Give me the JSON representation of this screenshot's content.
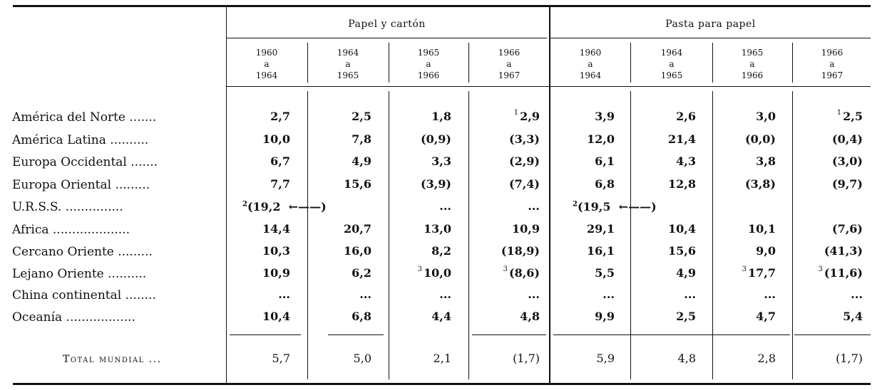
{
  "group_headers": [
    "Papel y cartón",
    "Pasta para papel"
  ],
  "periods": [
    [
      "1960",
      "a",
      "1964"
    ],
    [
      "1964",
      "a",
      "1965"
    ],
    [
      "1965",
      "a",
      "1966"
    ],
    [
      "1966",
      "a",
      "1967"
    ],
    [
      "1960",
      "a",
      "1964"
    ],
    [
      "1964",
      "a",
      "1965"
    ],
    [
      "1965",
      "a",
      "1966"
    ],
    [
      "1966",
      "a",
      "1967"
    ]
  ],
  "rows": [
    {
      "label": "América del Norte .......",
      "cells": [
        {
          "v": "2,7"
        },
        {
          "v": "2,5"
        },
        {
          "v": "1,8"
        },
        {
          "n": "1",
          "v": "2,9"
        },
        {
          "v": "3,9"
        },
        {
          "v": "2,6"
        },
        {
          "v": "3,0"
        },
        {
          "n": "1",
          "v": "2,5"
        }
      ]
    },
    {
      "label": "América Latina ..........",
      "cells": [
        {
          "v": "10,0"
        },
        {
          "v": "7,8"
        },
        {
          "v": "(0,9)"
        },
        {
          "v": "(3,3)"
        },
        {
          "v": "12,0"
        },
        {
          "v": "21,4"
        },
        {
          "v": "(0,0)"
        },
        {
          "v": "(0,4)"
        }
      ]
    },
    {
      "label": "Europa Occidental .......",
      "cells": [
        {
          "v": "6,7"
        },
        {
          "v": "4,9"
        },
        {
          "v": "3,3"
        },
        {
          "v": "(2,9)"
        },
        {
          "v": "6,1"
        },
        {
          "v": "4,3"
        },
        {
          "v": "3,8"
        },
        {
          "v": "(3,0)"
        }
      ]
    },
    {
      "label": "Europa Oriental .........",
      "cells": [
        {
          "v": "7,7"
        },
        {
          "v": "15,6"
        },
        {
          "v": "(3,9)"
        },
        {
          "v": "(7,4)"
        },
        {
          "v": "6,8"
        },
        {
          "v": "12,8"
        },
        {
          "v": "(3,8)"
        },
        {
          "v": "(9,7)"
        }
      ]
    },
    {
      "label": "U.R.S.S. ...............",
      "cells": [
        {
          "v": ""
        },
        {
          "v": ""
        },
        {
          "v": "..."
        },
        {
          "v": "..."
        },
        {
          "v": ""
        },
        {
          "v": ""
        },
        {
          "v": ""
        },
        {
          "v": ""
        }
      ]
    },
    {
      "label": "Africa ....................",
      "cells": [
        {
          "v": "14,4"
        },
        {
          "v": "20,7"
        },
        {
          "v": "13,0"
        },
        {
          "v": "10,9"
        },
        {
          "v": "29,1"
        },
        {
          "v": "10,4"
        },
        {
          "v": "10,1"
        },
        {
          "v": "(7,6)"
        }
      ]
    },
    {
      "label": "Cercano Oriente .........",
      "cells": [
        {
          "v": "10,3"
        },
        {
          "v": "16,0"
        },
        {
          "v": "8,2"
        },
        {
          "v": "(18,9)"
        },
        {
          "v": "16,1"
        },
        {
          "v": "15,6"
        },
        {
          "v": "9,0"
        },
        {
          "v": "(41,3)"
        }
      ]
    },
    {
      "label": "Lejano Oriente ..........",
      "cells": [
        {
          "v": "10,9"
        },
        {
          "v": "6,2"
        },
        {
          "n": "3",
          "v": "10,0"
        },
        {
          "n": "3",
          "v": "(8,6)"
        },
        {
          "v": "5,5"
        },
        {
          "v": "4,9"
        },
        {
          "n": "3",
          "v": "17,7"
        },
        {
          "n": "3",
          "v": "(11,6)"
        }
      ]
    },
    {
      "label": "China continental ........",
      "cells": [
        {
          "v": "..."
        },
        {
          "v": "..."
        },
        {
          "v": "..."
        },
        {
          "v": "..."
        },
        {
          "v": "..."
        },
        {
          "v": "..."
        },
        {
          "v": "..."
        },
        {
          "v": "..."
        }
      ]
    },
    {
      "label": "Oceanía ..................",
      "cells": [
        {
          "v": "10,4"
        },
        {
          "v": "6,8"
        },
        {
          "v": "4,4"
        },
        {
          "v": "4,8"
        },
        {
          "v": "9,9"
        },
        {
          "v": "2,5"
        },
        {
          "v": "4,7"
        },
        {
          "v": "5,4"
        }
      ]
    }
  ],
  "urss_spans": [
    {
      "n": "2",
      "v": "(19,2",
      "arrow": "←——)"
    },
    {
      "n": "2",
      "v": "(19,5",
      "arrow": "←——)"
    }
  ],
  "total": {
    "label": "Total mundial ...",
    "cells": [
      "5,7",
      "5,0",
      "2,1",
      "(1,7)",
      "5,9",
      "4,8",
      "2,8",
      "(1,7)"
    ]
  }
}
